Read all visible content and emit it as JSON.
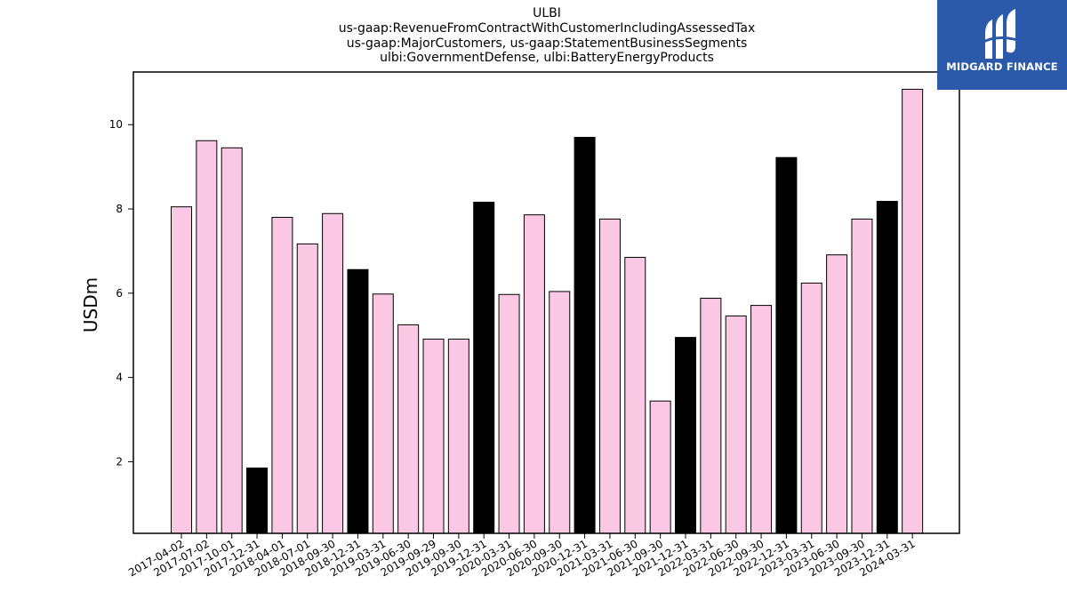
{
  "chart_data": {
    "type": "bar",
    "title_lines": [
      "ULBI",
      "us-gaap:RevenueFromContractWithCustomerIncludingAssessedTax",
      "us-gaap:MajorCustomers, us-gaap:StatementBusinessSegments",
      "ulbi:GovernmentDefense, ulbi:BatteryEnergyProducts"
    ],
    "ylabel": "USDm",
    "xlabel": "",
    "ylim": [
      0.3,
      11.25
    ],
    "yticks": [
      2,
      4,
      6,
      8,
      10
    ],
    "grid": false,
    "categories": [
      "2017-04-02",
      "2017-07-02",
      "2017-10-01",
      "2017-12-31",
      "2018-04-01",
      "2018-07-01",
      "2018-09-30",
      "2018-12-31",
      "2019-03-31",
      "2019-06-30",
      "2019-09-29",
      "2019-09-30",
      "2019-12-31",
      "2020-03-31",
      "2020-06-30",
      "2020-09-30",
      "2020-12-31",
      "2021-03-31",
      "2021-06-30",
      "2021-09-30",
      "2021-12-31",
      "2022-03-31",
      "2022-06-30",
      "2022-09-30",
      "2022-12-31",
      "2023-03-31",
      "2023-06-30",
      "2023-09-30",
      "2023-12-31",
      "2024-03-31"
    ],
    "values": [
      8.05,
      9.62,
      9.45,
      1.85,
      7.8,
      7.17,
      7.89,
      6.56,
      5.98,
      5.25,
      4.91,
      4.91,
      8.16,
      5.97,
      7.86,
      6.04,
      9.7,
      7.76,
      6.85,
      3.44,
      4.95,
      5.88,
      5.46,
      5.71,
      9.22,
      6.24,
      6.91,
      7.76,
      8.18,
      10.84
    ],
    "bar_colors": [
      "#fbc8e3",
      "#fbc8e3",
      "#fbc8e3",
      "#000000",
      "#fbc8e3",
      "#fbc8e3",
      "#fbc8e3",
      "#000000",
      "#fbc8e3",
      "#fbc8e3",
      "#fbc8e3",
      "#fbc8e3",
      "#000000",
      "#fbc8e3",
      "#fbc8e3",
      "#fbc8e3",
      "#000000",
      "#fbc8e3",
      "#fbc8e3",
      "#fbc8e3",
      "#000000",
      "#fbc8e3",
      "#fbc8e3",
      "#fbc8e3",
      "#000000",
      "#fbc8e3",
      "#fbc8e3",
      "#fbc8e3",
      "#000000",
      "#fbc8e3"
    ],
    "bar_edge_color": "#000000"
  },
  "logo": {
    "text": "MIDGARD FINANCE",
    "background": "#2b5aab",
    "icon": "midgard-logo-icon"
  }
}
